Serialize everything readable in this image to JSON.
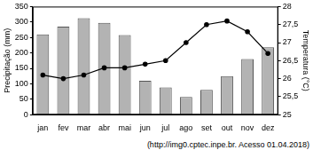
{
  "chart_data": {
    "type": "bar",
    "source": "(http://img0.cptec.inpe.br. Acesso 01.04.2018)",
    "categories": [
      "jan",
      "fev",
      "mar",
      "abr",
      "mai",
      "jun",
      "jul",
      "ago",
      "set",
      "out",
      "nov",
      "dez"
    ],
    "y_label": "Precipitação (mm)",
    "y2_label": "Temperatura (°C)",
    "series": [
      {
        "type": "bar",
        "color": "#b3b3b3",
        "values": [
          260,
          285,
          312,
          297,
          258,
          110,
          88,
          57,
          80,
          125,
          180,
          218
        ]
      },
      {
        "type": "line",
        "axis": "y2",
        "color": "#000000",
        "marker": "circle",
        "values": [
          26.1,
          26.0,
          26.1,
          26.3,
          26.3,
          26.4,
          26.5,
          27.0,
          27.5,
          27.6,
          27.3,
          26.7
        ]
      }
    ],
    "ylim": [
      0,
      350
    ],
    "yticks": [
      0,
      50,
      100,
      150,
      200,
      250,
      300,
      350
    ],
    "y2lim": [
      25,
      28
    ],
    "y2ticks": [
      25,
      {
        "value": 25.5,
        "label": "25,5"
      },
      26,
      {
        "value": 26.5,
        "label": "26,5"
      },
      27,
      {
        "value": 27.5,
        "label": "27,5"
      },
      28
    ],
    "grid": false
  }
}
